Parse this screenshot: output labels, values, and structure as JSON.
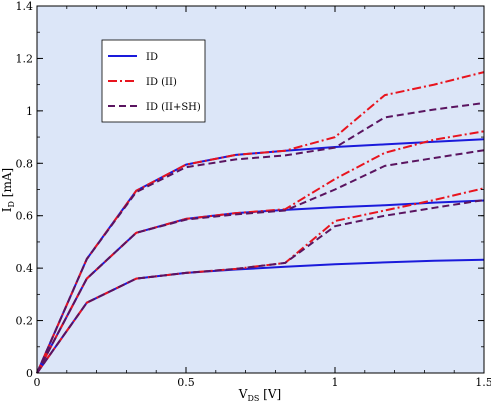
{
  "chart_data": {
    "type": "line",
    "xlabel": {
      "main": "V",
      "sub": "DS",
      "unit": " [V]"
    },
    "ylabel": {
      "main": "I",
      "sub": "D",
      "unit": " [mA]"
    },
    "xlim": [
      0,
      1.5
    ],
    "ylim": [
      0,
      1.4
    ],
    "xticks": [
      0,
      0.5,
      1,
      1.5
    ],
    "yticks": [
      0,
      0.2,
      0.4,
      0.6,
      0.8,
      1,
      1.2,
      1.4
    ],
    "xtick_labels": [
      "0",
      "0.5",
      "1",
      "1.5"
    ],
    "ytick_labels": [
      "0",
      "0.2",
      "0.4",
      "0.6",
      "0.8",
      "1",
      "1.2",
      "1.4"
    ],
    "grid": false,
    "background": "#dce6f8",
    "legend_position": "top-left",
    "legend": [
      {
        "label": "ID",
        "color": "#1a1adb",
        "style": "solid"
      },
      {
        "label": "ID (II)",
        "color": "#e8141e",
        "style": "dashdot"
      },
      {
        "label": "ID (II+SH)",
        "color": "#5a1460",
        "style": "dashed"
      }
    ],
    "series": [
      {
        "legend_index": 0,
        "points": [
          [
            0,
            0
          ],
          [
            0.167,
            0.268
          ],
          [
            0.333,
            0.36
          ],
          [
            0.5,
            0.382
          ],
          [
            0.667,
            0.395
          ],
          [
            0.833,
            0.405
          ],
          [
            1.0,
            0.415
          ],
          [
            1.167,
            0.422
          ],
          [
            1.333,
            0.428
          ],
          [
            1.5,
            0.432
          ]
        ]
      },
      {
        "legend_index": 0,
        "points": [
          [
            0,
            0
          ],
          [
            0.167,
            0.36
          ],
          [
            0.333,
            0.535
          ],
          [
            0.5,
            0.588
          ],
          [
            0.667,
            0.61
          ],
          [
            0.833,
            0.622
          ],
          [
            1.0,
            0.632
          ],
          [
            1.167,
            0.64
          ],
          [
            1.333,
            0.65
          ],
          [
            1.5,
            0.658
          ]
        ]
      },
      {
        "legend_index": 0,
        "points": [
          [
            0,
            0
          ],
          [
            0.167,
            0.435
          ],
          [
            0.333,
            0.695
          ],
          [
            0.5,
            0.795
          ],
          [
            0.667,
            0.832
          ],
          [
            0.833,
            0.848
          ],
          [
            1.0,
            0.862
          ],
          [
            1.167,
            0.872
          ],
          [
            1.333,
            0.882
          ],
          [
            1.5,
            0.892
          ]
        ]
      },
      {
        "legend_index": 1,
        "points": [
          [
            0,
            0
          ],
          [
            0.167,
            0.268
          ],
          [
            0.333,
            0.36
          ],
          [
            0.5,
            0.382
          ],
          [
            0.667,
            0.397
          ],
          [
            0.833,
            0.42
          ],
          [
            1.0,
            0.58
          ],
          [
            1.167,
            0.62
          ],
          [
            1.333,
            0.66
          ],
          [
            1.5,
            0.705
          ]
        ]
      },
      {
        "legend_index": 1,
        "points": [
          [
            0,
            0
          ],
          [
            0.167,
            0.36
          ],
          [
            0.333,
            0.535
          ],
          [
            0.5,
            0.588
          ],
          [
            0.667,
            0.61
          ],
          [
            0.833,
            0.625
          ],
          [
            1.0,
            0.74
          ],
          [
            1.167,
            0.84
          ],
          [
            1.333,
            0.89
          ],
          [
            1.5,
            0.922
          ]
        ]
      },
      {
        "legend_index": 1,
        "points": [
          [
            0,
            0
          ],
          [
            0.167,
            0.435
          ],
          [
            0.333,
            0.695
          ],
          [
            0.5,
            0.795
          ],
          [
            0.667,
            0.832
          ],
          [
            0.833,
            0.848
          ],
          [
            1.0,
            0.9
          ],
          [
            1.167,
            1.06
          ],
          [
            1.333,
            1.1
          ],
          [
            1.5,
            1.148
          ]
        ]
      },
      {
        "legend_index": 2,
        "points": [
          [
            0,
            0
          ],
          [
            0.167,
            0.268
          ],
          [
            0.333,
            0.36
          ],
          [
            0.5,
            0.382
          ],
          [
            0.667,
            0.397
          ],
          [
            0.833,
            0.42
          ],
          [
            1.0,
            0.56
          ],
          [
            1.167,
            0.6
          ],
          [
            1.333,
            0.63
          ],
          [
            1.5,
            0.66
          ]
        ]
      },
      {
        "legend_index": 2,
        "points": [
          [
            0,
            0
          ],
          [
            0.167,
            0.36
          ],
          [
            0.333,
            0.535
          ],
          [
            0.5,
            0.585
          ],
          [
            0.667,
            0.605
          ],
          [
            0.833,
            0.62
          ],
          [
            1.0,
            0.7
          ],
          [
            1.167,
            0.79
          ],
          [
            1.333,
            0.82
          ],
          [
            1.5,
            0.85
          ]
        ]
      },
      {
        "legend_index": 2,
        "points": [
          [
            0,
            0
          ],
          [
            0.167,
            0.435
          ],
          [
            0.333,
            0.69
          ],
          [
            0.5,
            0.785
          ],
          [
            0.667,
            0.815
          ],
          [
            0.833,
            0.83
          ],
          [
            1.0,
            0.86
          ],
          [
            1.167,
            0.975
          ],
          [
            1.333,
            1.005
          ],
          [
            1.5,
            1.03
          ]
        ]
      }
    ]
  }
}
